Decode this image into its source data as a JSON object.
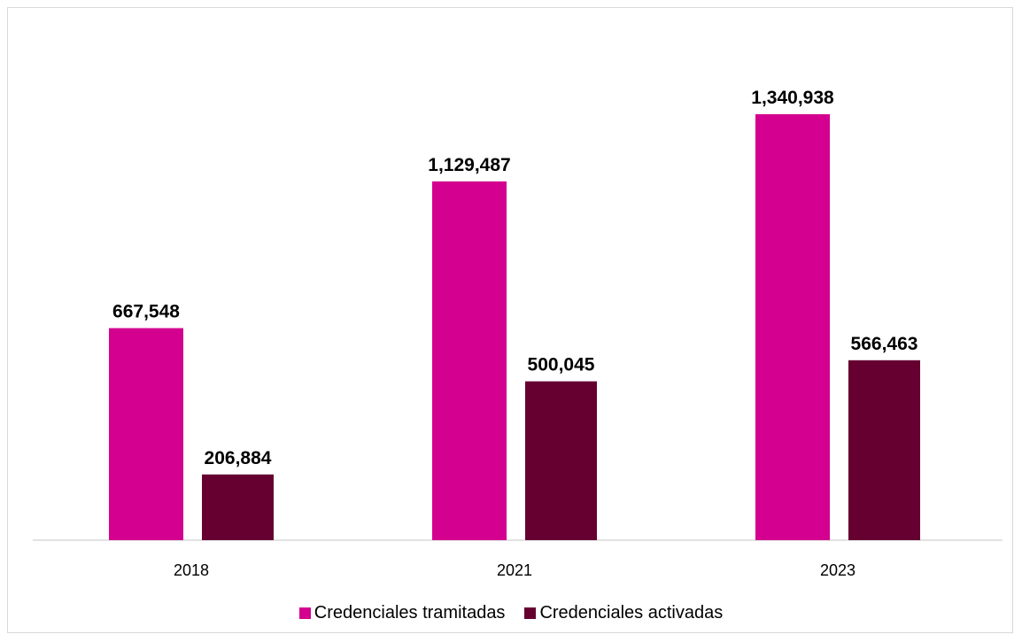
{
  "chart_data": {
    "type": "bar",
    "categories": [
      "2018",
      "2021",
      "2023"
    ],
    "series": [
      {
        "name": "Credenciales tramitadas",
        "values": [
          667548,
          1129487,
          1340938
        ],
        "labels": [
          "667,548",
          "1,129,487",
          "1,340,938"
        ],
        "color": "#d4008f"
      },
      {
        "name": "Credenciales activadas",
        "values": [
          206884,
          500045,
          566463
        ],
        "labels": [
          "206,884",
          "500,045",
          "566,463"
        ],
        "color": "#650031"
      }
    ],
    "title": "",
    "xlabel": "",
    "ylabel": "",
    "ylim": [
      0,
      1340938
    ],
    "grid": false,
    "legend_position": "bottom"
  }
}
